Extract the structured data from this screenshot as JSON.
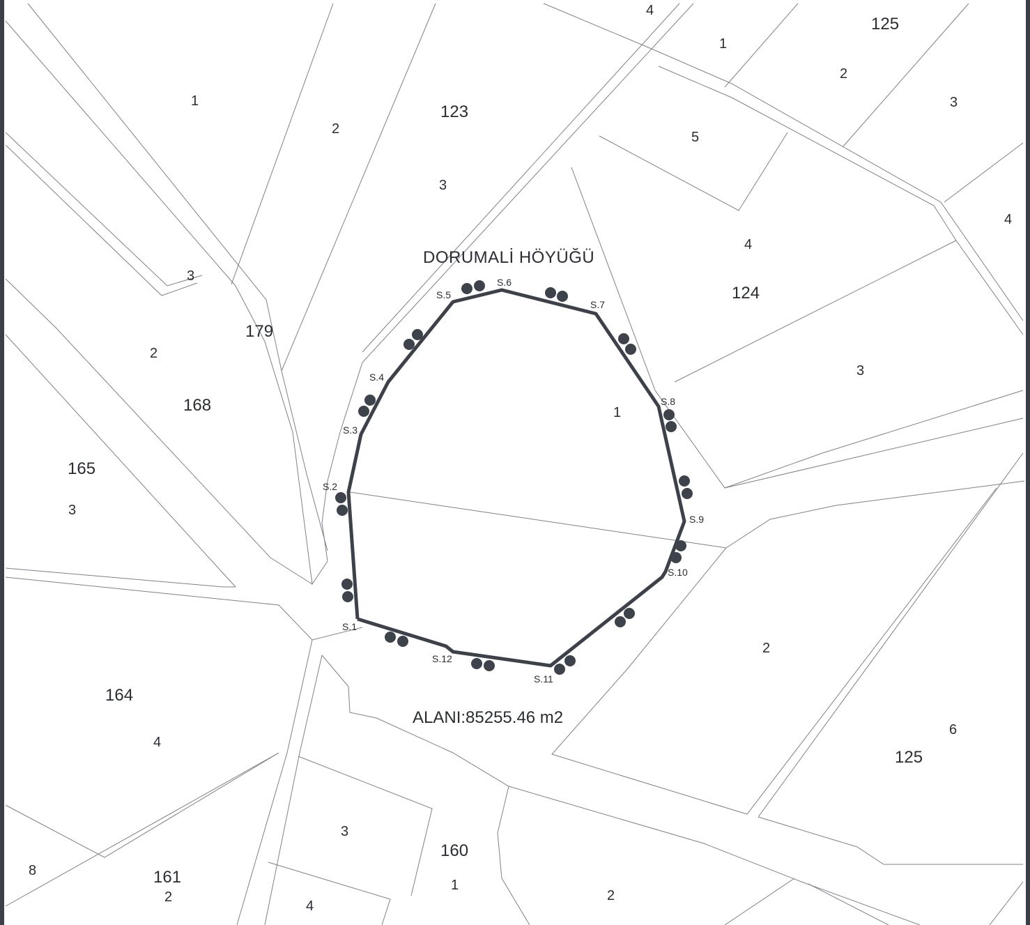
{
  "map": {
    "site_name": "DORUMALİ HÖYÜĞÜ",
    "area_label": "ALANI:85255.46 m2",
    "inner_parcel": "1",
    "colors": {
      "boundary": "#3d414a",
      "lines": "#7d8189",
      "text": "#2a2d33",
      "frame": "#3b3f47"
    }
  },
  "survey_points": [
    "S.1",
    "S.2",
    "S.3",
    "S.4",
    "S.5",
    "S.6",
    "S.7",
    "S.8",
    "S.9",
    "S.10",
    "S.11",
    "S.12"
  ],
  "blocks": {
    "b123": "123",
    "b124": "124",
    "b125_top": "125",
    "b125_bottom": "125",
    "b179": "179",
    "b168": "168",
    "b165": "165",
    "b164": "164",
    "b161": "161",
    "b160": "160"
  },
  "parcels": {
    "p_top_4": "4",
    "p_top_1": "1",
    "p_125_2": "2",
    "p_125_3": "3",
    "p_nw_1": "1",
    "p_123_2": "2",
    "p_123_3": "3",
    "p_124_5": "5",
    "p_124_4": "4",
    "p_124_3": "3",
    "p_right_4": "4",
    "p_179_3": "3",
    "p_168_2": "2",
    "p_165_3": "3",
    "p_se_2": "2",
    "p_125_6": "6",
    "p_164_4": "4",
    "p_left_8": "8",
    "p_161_2": "2",
    "p_s_3": "3",
    "p_s_4": "4",
    "p_160_1": "1",
    "p_sr_2": "2"
  }
}
